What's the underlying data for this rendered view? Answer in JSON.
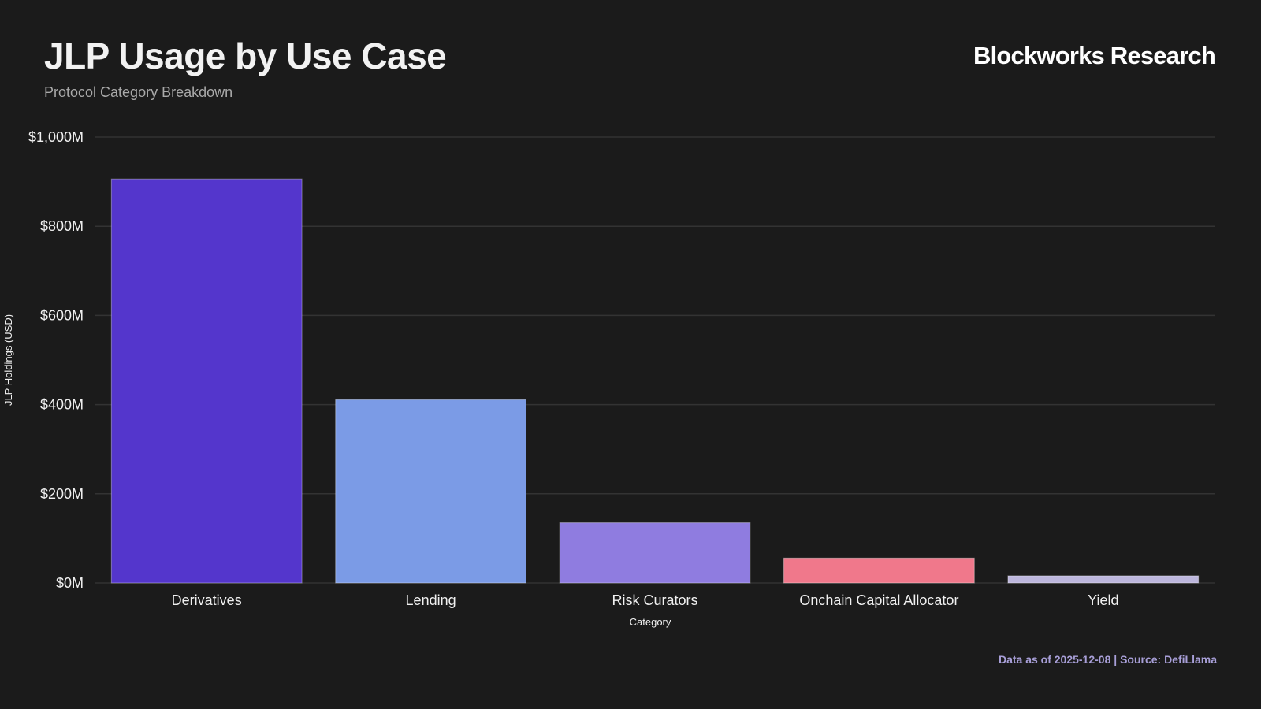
{
  "header": {
    "title": "JLP Usage by Use Case",
    "subtitle": "Protocol Category Breakdown",
    "brand": "Blockworks Research"
  },
  "footer": {
    "source": "Data as of 2025-12-08 | Source: DefiLlama"
  },
  "colors": {
    "background": "#1b1b1b",
    "grid": "#333333",
    "bars": [
      "#5436cc",
      "#7b9be6",
      "#8f7ce0",
      "#f0788b",
      "#bcb6dc"
    ]
  },
  "chart_data": {
    "type": "bar",
    "title": "JLP Usage by Use Case",
    "subtitle": "Protocol Category Breakdown",
    "xlabel": "Category",
    "ylabel": "JLP Holdings (USD)",
    "categories": [
      "Derivatives",
      "Lending",
      "Risk Curators",
      "Onchain Capital Allocator",
      "Yield"
    ],
    "values": [
      906,
      411,
      135,
      56,
      16
    ],
    "unit": "M USD",
    "ylim": [
      0,
      1000
    ],
    "yticks": [
      0,
      200,
      400,
      600,
      800,
      1000
    ],
    "ytick_labels": [
      "$0M",
      "$200M",
      "$400M",
      "$600M",
      "$800M",
      "$1,000M"
    ],
    "grid": true,
    "legend": "none"
  }
}
